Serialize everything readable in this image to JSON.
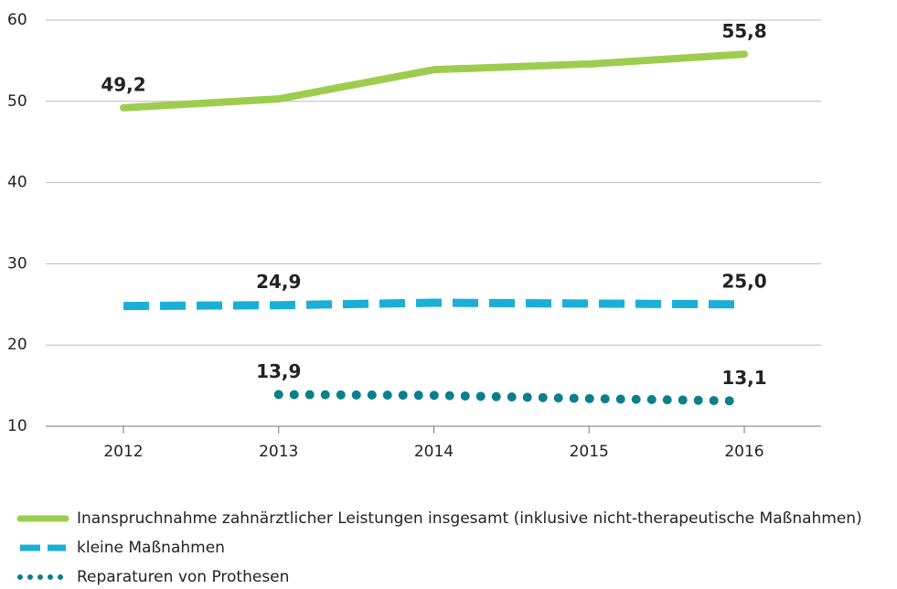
{
  "chart_data": {
    "type": "line",
    "categories": [
      "2012",
      "2013",
      "2014",
      "2015",
      "2016"
    ],
    "series": [
      {
        "name": "Inanspruchnahme zahnärztlicher Leistungen insgesamt (inklusive nicht-therapeutische Maßnahmen)",
        "color": "#9dcd4f",
        "style": "solid",
        "values": [
          49.2,
          50.3,
          53.9,
          54.6,
          55.8
        ],
        "value_labels": [
          "49,2",
          null,
          null,
          null,
          "55,8"
        ]
      },
      {
        "name": "kleine Maßnahmen",
        "color": "#1aafd6",
        "style": "dashed",
        "values": [
          24.8,
          24.9,
          25.2,
          25.1,
          25.0
        ],
        "value_labels": [
          null,
          "24,9",
          null,
          null,
          "25,0"
        ]
      },
      {
        "name": "Reparaturen von Prothesen",
        "color": "#0b7f8c",
        "style": "dotted",
        "values": [
          null,
          13.9,
          13.8,
          13.4,
          13.1
        ],
        "value_labels": [
          null,
          "13,9",
          null,
          null,
          "13,1"
        ]
      }
    ],
    "ylim": [
      10,
      60
    ],
    "yticks": [
      10,
      20,
      30,
      40,
      50,
      60
    ],
    "grid": true,
    "legend": "bottom"
  }
}
